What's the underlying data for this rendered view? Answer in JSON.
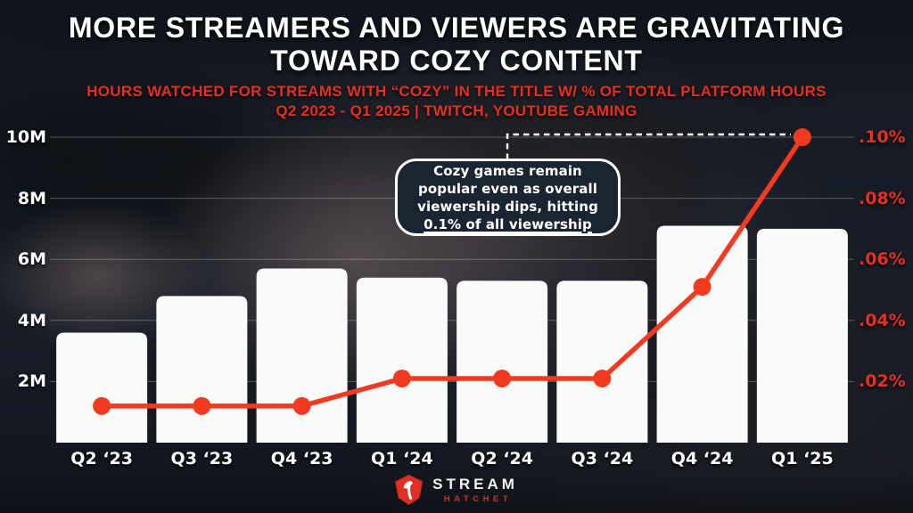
{
  "header": {
    "title_line1": "MORE STREAMERS AND VIEWERS ARE GRAVITATING",
    "title_line2": "TOWARD COZY CONTENT",
    "subtitle_line1": "HOURS WATCHED FOR STREAMS WITH “COZY” IN THE TITLE W/ % OF TOTAL PLATFORM HOURS",
    "subtitle_line2": "Q2 2023 - Q1 2025 | TWITCH, YOUTUBE GAMING"
  },
  "callout": {
    "lines": [
      "Cozy games remain",
      "popular even as overall",
      "viewership dips, hitting",
      "0.1% of all viewership"
    ]
  },
  "footer": {
    "brand_top": "STREAM",
    "brand_bottom": "HATCHET"
  },
  "colors": {
    "background": "#151a23",
    "bar": "#fafafa",
    "accent_red": "#e5301f",
    "line": "#f13a1f",
    "callout_bg": "#1b2531",
    "gridline": "rgba(255,255,255,0.28)",
    "title_text": "#ffffff"
  },
  "chart_data": {
    "type": "bar",
    "title": "Hours watched for streams with “cozy” in the title w/ % of total platform hours",
    "categories": [
      "Q2 ‘23",
      "Q3 ‘23",
      "Q4 ‘23",
      "Q1 ‘24",
      "Q2 ‘24",
      "Q3 ‘24",
      "Q4 ‘24",
      "Q1 ‘25"
    ],
    "series": [
      {
        "name": "Hours watched (millions)",
        "type": "bar",
        "unit": "M",
        "values": [
          3.6,
          4.8,
          5.7,
          5.4,
          5.3,
          5.3,
          7.1,
          7.0
        ]
      },
      {
        "name": "% of total platform hours",
        "type": "line",
        "unit": "%",
        "values": [
          0.012,
          0.012,
          0.012,
          0.021,
          0.021,
          0.021,
          0.051,
          0.1
        ]
      }
    ],
    "yaxis_left": {
      "ticks": [
        "2M",
        "4M",
        "6M",
        "8M",
        "10M"
      ],
      "tick_values": [
        2,
        4,
        6,
        8,
        10
      ],
      "max": 10,
      "min": 0
    },
    "yaxis_right": {
      "ticks": [
        ".02%",
        ".04%",
        ".06%",
        ".08%",
        ".10%"
      ],
      "tick_values": [
        0.02,
        0.04,
        0.06,
        0.08,
        0.1
      ],
      "max": 0.1,
      "min": 0
    },
    "grid": true,
    "legend": false
  }
}
